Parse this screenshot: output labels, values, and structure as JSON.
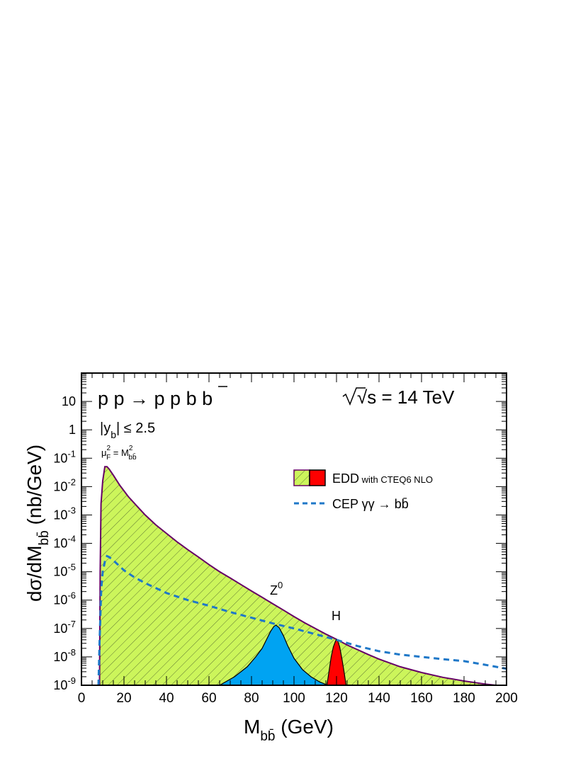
{
  "chart_data": {
    "type": "area",
    "title": "",
    "xlabel": {
      "main": "M",
      "sub": "bb̄",
      "unit": " (GeV)"
    },
    "ylabel": {
      "main": "dσ/dM",
      "sub": "bb̄",
      "unit": " (nb/GeV)"
    },
    "xlim": [
      0,
      200
    ],
    "ylim_log10": [
      -9,
      2
    ],
    "x_ticks": [
      "0",
      "20",
      "40",
      "60",
      "80",
      "100",
      "120",
      "140",
      "160",
      "180",
      "200"
    ],
    "y_ticks": [
      {
        "exp": -9,
        "label": "10",
        "sup": "-9"
      },
      {
        "exp": -8,
        "label": "10",
        "sup": "-8"
      },
      {
        "exp": -7,
        "label": "10",
        "sup": "-7"
      },
      {
        "exp": -6,
        "label": "10",
        "sup": "-6"
      },
      {
        "exp": -5,
        "label": "10",
        "sup": "-5"
      },
      {
        "exp": -4,
        "label": "10",
        "sup": "-4"
      },
      {
        "exp": -3,
        "label": "10",
        "sup": "-3"
      },
      {
        "exp": -2,
        "label": "10",
        "sup": "-2"
      },
      {
        "exp": -1,
        "label": "10",
        "sup": "-1"
      },
      {
        "exp": 0,
        "label": "1",
        "sup": ""
      },
      {
        "exp": 1,
        "label": "10",
        "sup": ""
      }
    ],
    "annotations": {
      "process": "p p → p p b b",
      "energy": "√s = 14 TeV",
      "cut": "|y_b| ≤ 2.5",
      "scale": "μ_F² = M²_bb̄",
      "z_label": "Z",
      "z_sup": "0",
      "h_label": "H"
    },
    "legend": {
      "position": "upper-right",
      "entries": [
        {
          "label": "EDD",
          "detail": " with CTEQ6 NLO"
        },
        {
          "label": "CEP  γγ → bb̄",
          "detail": ""
        }
      ]
    },
    "series": [
      {
        "name": "EDD",
        "style": "hatched-fill",
        "color": "#ccf55b",
        "line_color": "#660066",
        "points": [
          [
            8.5,
            -9
          ],
          [
            8.8,
            -5.0
          ],
          [
            9.2,
            -2.6
          ],
          [
            10,
            -1.8
          ],
          [
            11,
            -1.3
          ],
          [
            12,
            -1.3
          ],
          [
            13,
            -1.38
          ],
          [
            15,
            -1.6
          ],
          [
            18,
            -1.95
          ],
          [
            22,
            -2.35
          ],
          [
            26,
            -2.68
          ],
          [
            30,
            -3.0
          ],
          [
            35,
            -3.35
          ],
          [
            40,
            -3.65
          ],
          [
            45,
            -3.95
          ],
          [
            50,
            -4.22
          ],
          [
            55,
            -4.48
          ],
          [
            60,
            -4.75
          ],
          [
            65,
            -5.0
          ],
          [
            70,
            -5.22
          ],
          [
            75,
            -5.45
          ],
          [
            80,
            -5.68
          ],
          [
            85,
            -5.9
          ],
          [
            90,
            -6.13
          ],
          [
            95,
            -6.35
          ],
          [
            100,
            -6.58
          ],
          [
            105,
            -6.8
          ],
          [
            110,
            -7.0
          ],
          [
            115,
            -7.2
          ],
          [
            120,
            -7.38
          ],
          [
            125,
            -7.58
          ],
          [
            130,
            -7.75
          ],
          [
            135,
            -7.92
          ],
          [
            140,
            -8.08
          ],
          [
            150,
            -8.35
          ],
          [
            160,
            -8.55
          ],
          [
            170,
            -8.72
          ],
          [
            180,
            -8.85
          ],
          [
            190,
            -8.96
          ],
          [
            195,
            -9
          ]
        ]
      },
      {
        "name": "Z⁰",
        "style": "filled",
        "color": "#00a3f2",
        "points": [
          [
            65,
            -9
          ],
          [
            72,
            -8.7
          ],
          [
            78,
            -8.35
          ],
          [
            82,
            -8.0
          ],
          [
            85,
            -7.7
          ],
          [
            87,
            -7.4
          ],
          [
            89,
            -7.1
          ],
          [
            90.5,
            -6.93
          ],
          [
            91.5,
            -6.88
          ],
          [
            93,
            -6.97
          ],
          [
            95,
            -7.25
          ],
          [
            97,
            -7.6
          ],
          [
            100,
            -8.05
          ],
          [
            104,
            -8.45
          ],
          [
            108,
            -8.7
          ],
          [
            112,
            -8.88
          ],
          [
            116,
            -9
          ]
        ]
      },
      {
        "name": "H",
        "style": "filled",
        "color": "#ff0000",
        "points": [
          [
            115.5,
            -9
          ],
          [
            116.5,
            -8.5
          ],
          [
            117.5,
            -8.0
          ],
          [
            118.5,
            -7.65
          ],
          [
            119.5,
            -7.45
          ],
          [
            120,
            -7.38
          ],
          [
            120.5,
            -7.42
          ],
          [
            121.5,
            -7.65
          ],
          [
            122.5,
            -8.05
          ],
          [
            123.5,
            -8.5
          ],
          [
            124.5,
            -9
          ]
        ]
      },
      {
        "name": "CEP γγ → bb̄",
        "style": "dashed-line",
        "color": "#1f78c8",
        "points": [
          [
            8,
            -9
          ],
          [
            8.5,
            -7.5
          ],
          [
            9.3,
            -5.6
          ],
          [
            10,
            -5.0
          ],
          [
            11,
            -4.65
          ],
          [
            12,
            -4.45
          ],
          [
            13,
            -4.48
          ],
          [
            15,
            -4.6
          ],
          [
            20,
            -4.95
          ],
          [
            25,
            -5.2
          ],
          [
            30,
            -5.4
          ],
          [
            40,
            -5.75
          ],
          [
            50,
            -6.0
          ],
          [
            60,
            -6.2
          ],
          [
            70,
            -6.42
          ],
          [
            80,
            -6.62
          ],
          [
            90,
            -6.82
          ],
          [
            100,
            -7.0
          ],
          [
            110,
            -7.2
          ],
          [
            120,
            -7.4
          ],
          [
            130,
            -7.62
          ],
          [
            140,
            -7.8
          ],
          [
            150,
            -7.92
          ],
          [
            160,
            -8.0
          ],
          [
            170,
            -8.08
          ],
          [
            180,
            -8.15
          ],
          [
            190,
            -8.28
          ],
          [
            200,
            -8.42
          ]
        ]
      }
    ]
  }
}
